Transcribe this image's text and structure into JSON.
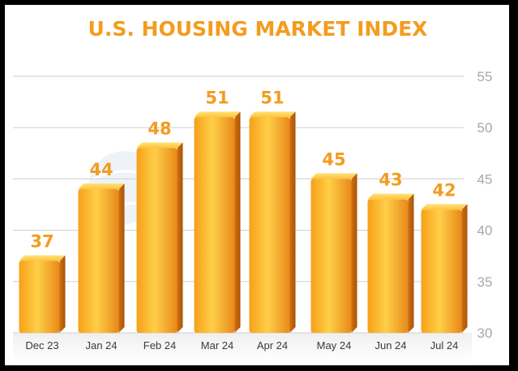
{
  "chart_data": {
    "type": "bar",
    "title": "U.S. HOUSING MARKET INDEX",
    "categories": [
      "Dec 23",
      "Jan 24",
      "Feb 24",
      "Mar 24",
      "Apr 24",
      "May 24",
      "Jun 24",
      "Jul 24"
    ],
    "values": [
      37,
      44,
      48,
      51,
      51,
      45,
      43,
      42
    ],
    "data_labels": [
      "37",
      "44",
      "48",
      "51",
      "51",
      "45",
      "43",
      "42"
    ],
    "ylim": [
      30,
      55
    ],
    "yticks": [
      "30",
      "35",
      "40",
      "45",
      "50",
      "55"
    ],
    "y_axis_side": "right",
    "grid": true,
    "colors": {
      "title": "#f39c1f",
      "label": "#f39c1f",
      "bar_light": "#ffd24a",
      "bar_mid": "#f7a51a",
      "bar_dark": "#d9780f",
      "grid": "#d6d6d6",
      "tick": "#a8a8a8",
      "category": "#3a3a3a"
    }
  }
}
